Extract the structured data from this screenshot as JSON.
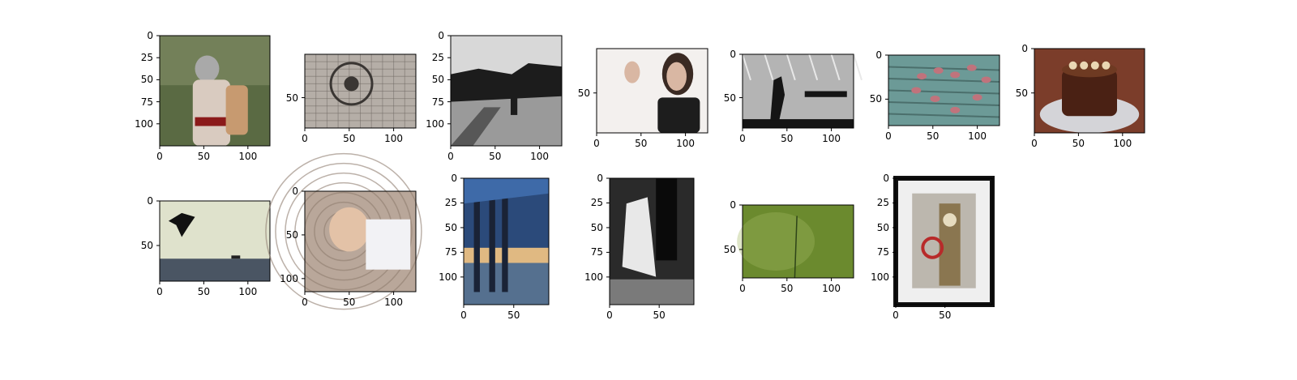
{
  "figure": {
    "background": "#ffffff",
    "text_color": "#000000"
  },
  "panels": [
    {
      "id": "p1",
      "image": "grey-haired woman with sunglasses and tattooed arm in a park",
      "colors": {
        "bg": "#5a6a43",
        "fg": "#d9cbc0",
        "accent": "#8b1a1a"
      },
      "xlim": [
        0,
        125
      ],
      "ylim": [
        125,
        0
      ],
      "xticks": [
        "0",
        "50",
        "100"
      ],
      "xtick_values": [
        0,
        50,
        100
      ],
      "yticks": [
        "0",
        "25",
        "50",
        "75",
        "100"
      ],
      "ytick_values": [
        0,
        25,
        50,
        75,
        100
      ]
    },
    {
      "id": "p2",
      "image": "grayscale carved stone lattice with floral medallion",
      "colors": {
        "bg": "#b5aea7",
        "fg": "#6e6862",
        "accent": "#3a3633"
      },
      "xlim": [
        0,
        125
      ],
      "ylim": [
        85,
        0
      ],
      "xticks": [
        "0",
        "50",
        "100"
      ],
      "xtick_values": [
        0,
        50,
        100
      ],
      "yticks": [
        "50"
      ],
      "ytick_values": [
        50
      ]
    },
    {
      "id": "p3",
      "image": "black and white street silhouette with lone pedestrian",
      "colors": {
        "bg": "#d8d8d8",
        "fg": "#1c1c1c",
        "accent": "#8a8a8a"
      },
      "xlim": [
        0,
        125
      ],
      "ylim": [
        125,
        0
      ],
      "xticks": [
        "0",
        "50",
        "100"
      ],
      "xtick_values": [
        0,
        50,
        100
      ],
      "yticks": [
        "0",
        "25",
        "50",
        "75",
        "100"
      ],
      "ytick_values": [
        0,
        25,
        50,
        75,
        100
      ]
    },
    {
      "id": "p4",
      "image": "woman with dark bangs raising hand against white backdrop",
      "colors": {
        "bg": "#f3f0ee",
        "fg": "#3a2a23",
        "accent": "#d9b7a3"
      },
      "xlim": [
        0,
        125
      ],
      "ylim": [
        95,
        0
      ],
      "xticks": [
        "0",
        "50",
        "100"
      ],
      "xtick_values": [
        0,
        50,
        100
      ],
      "yticks": [
        "50"
      ],
      "ytick_values": [
        50
      ]
    },
    {
      "id": "p5",
      "image": "black and white shadow of walking figure under ceiling grid",
      "colors": {
        "bg": "#b4b4b4",
        "fg": "#151515",
        "accent": "#6f6f6f"
      },
      "xlim": [
        0,
        125
      ],
      "ylim": [
        85,
        0
      ],
      "xticks": [
        "0",
        "50",
        "100"
      ],
      "xtick_values": [
        0,
        50,
        100
      ],
      "yticks": [
        "0",
        "50"
      ],
      "ytick_values": [
        0,
        50
      ]
    },
    {
      "id": "p6",
      "image": "heart of pink petals on teal wooden boards",
      "colors": {
        "bg": "#6c9a97",
        "fg": "#c0737c",
        "accent": "#4b6f6c"
      },
      "xlim": [
        0,
        125
      ],
      "ylim": [
        80,
        0
      ],
      "xticks": [
        "0",
        "50",
        "100"
      ],
      "xtick_values": [
        0,
        50,
        100
      ],
      "yticks": [
        "0",
        "50"
      ],
      "ytick_values": [
        0,
        50
      ]
    },
    {
      "id": "p7",
      "image": "chocolate cake topped with cream rosettes on a plate",
      "colors": {
        "bg": "#7b3d2a",
        "fg": "#e9d6b3",
        "accent": "#4a2114"
      },
      "xlim": [
        0,
        125
      ],
      "ylim": [
        95,
        0
      ],
      "xticks": [
        "0",
        "50",
        "100"
      ],
      "xtick_values": [
        0,
        50,
        100
      ],
      "yticks": [
        "0",
        "50"
      ],
      "ytick_values": [
        0,
        50
      ]
    },
    {
      "id": "p8",
      "image": "silhouette of person leaping above a sea horizon at dusk",
      "colors": {
        "bg": "#dfe2cc",
        "fg": "#111111",
        "accent": "#4a5563"
      },
      "xlim": [
        0,
        125
      ],
      "ylim": [
        90,
        0
      ],
      "xticks": [
        "0",
        "50",
        "100"
      ],
      "xtick_values": [
        0,
        50,
        100
      ],
      "yticks": [
        "0",
        "50"
      ],
      "ytick_values": [
        0,
        50
      ]
    },
    {
      "id": "p9",
      "image": "man peering through distorted glass holding paper",
      "colors": {
        "bg": "#b9a79a",
        "fg": "#e3c2a7",
        "accent": "#5a4a40"
      },
      "xlim": [
        0,
        125
      ],
      "ylim": [
        115,
        0
      ],
      "xticks": [
        "0",
        "50",
        "100"
      ],
      "xtick_values": [
        0,
        50,
        100
      ],
      "yticks": [
        "0",
        "50",
        "100"
      ],
      "ytick_values": [
        0,
        50,
        100
      ]
    },
    {
      "id": "p10",
      "image": "blue pier columns reflected on wet sand at sunset",
      "colors": {
        "bg": "#2b4a7a",
        "fg": "#e0b982",
        "accent": "#1a2336"
      },
      "xlim": [
        0,
        85
      ],
      "ylim": [
        128,
        0
      ],
      "xticks": [
        "0",
        "50"
      ],
      "xtick_values": [
        0,
        50
      ],
      "yticks": [
        "0",
        "25",
        "50",
        "75",
        "100"
      ],
      "ytick_values": [
        0,
        25,
        50,
        75,
        100
      ]
    },
    {
      "id": "p11",
      "image": "black and white dancer in white dress by a window",
      "colors": {
        "bg": "#2a2a2a",
        "fg": "#e8e8e8",
        "accent": "#7a7a7a"
      },
      "xlim": [
        0,
        85
      ],
      "ylim": [
        128,
        0
      ],
      "xticks": [
        "0",
        "50"
      ],
      "xtick_values": [
        0,
        50
      ],
      "yticks": [
        "0",
        "25",
        "50",
        "75",
        "100"
      ],
      "ytick_values": [
        0,
        25,
        50,
        75,
        100
      ]
    },
    {
      "id": "p12",
      "image": "single grass stem against blurred green background",
      "colors": {
        "bg": "#6b8a2e",
        "fg": "#a4b860",
        "accent": "#4a6620"
      },
      "xlim": [
        0,
        125
      ],
      "ylim": [
        82,
        0
      ],
      "xticks": [
        "0",
        "50",
        "100"
      ],
      "xtick_values": [
        0,
        50,
        100
      ],
      "yticks": [
        "0",
        "50"
      ],
      "ytick_values": [
        0,
        50
      ]
    },
    {
      "id": "p13",
      "image": "framed print of Big Ben with Underground sign",
      "colors": {
        "bg": "#efefef",
        "fg": "#8a7650",
        "accent": "#b82a2a"
      },
      "xlim": [
        0,
        98
      ],
      "ylim": [
        128,
        0
      ],
      "xticks": [
        "0",
        "50"
      ],
      "xtick_values": [
        0,
        50
      ],
      "yticks": [
        "0",
        "25",
        "50",
        "75",
        "100"
      ],
      "ytick_values": [
        0,
        25,
        50,
        75,
        100
      ]
    }
  ]
}
